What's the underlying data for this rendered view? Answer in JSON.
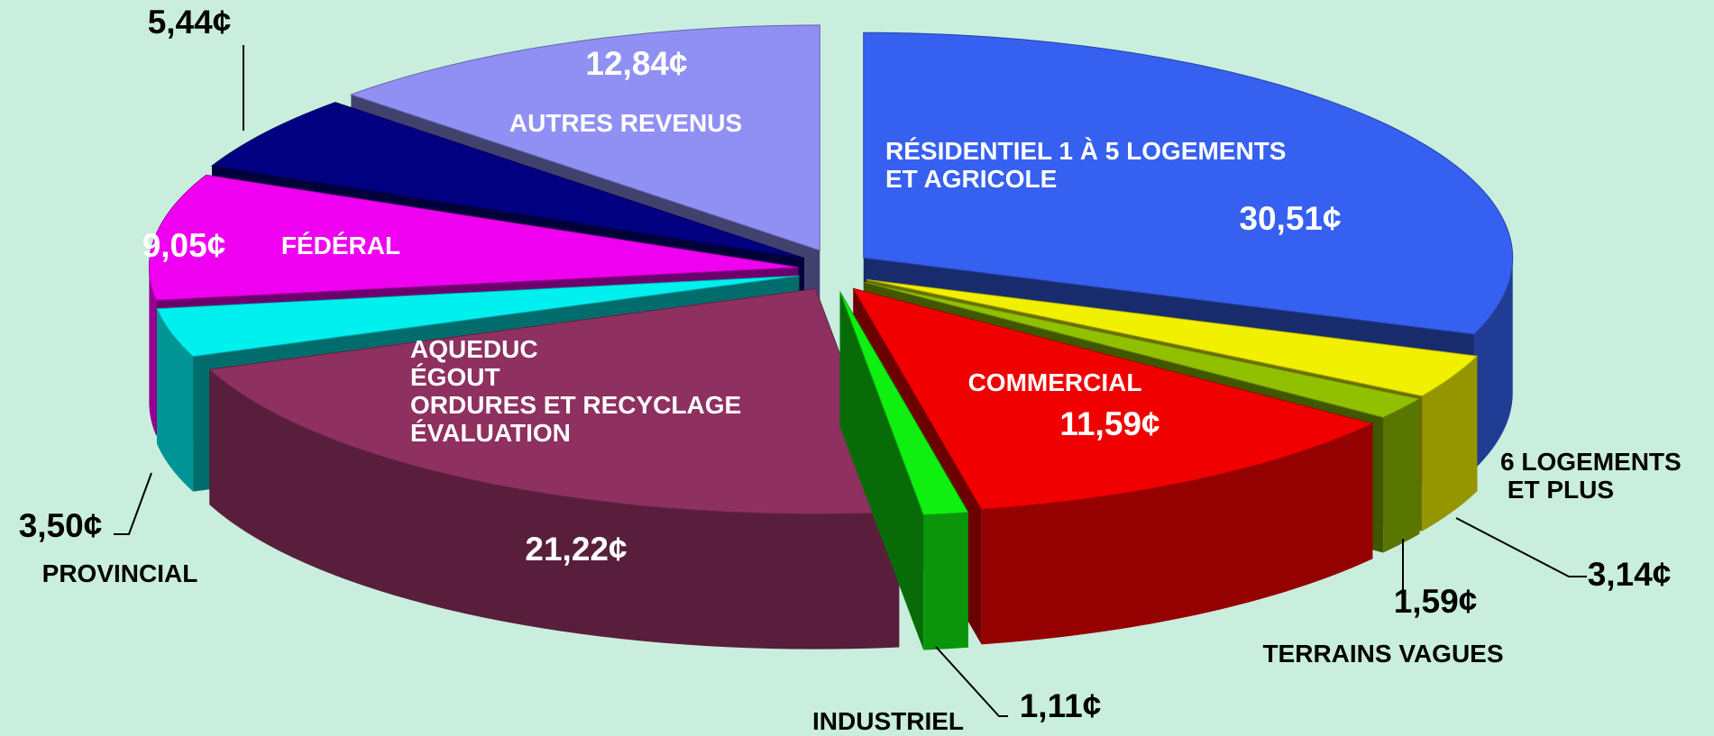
{
  "chart_data": {
    "type": "pie3d",
    "categories": [
      "RÉSIDENTIEL 1 À 5 LOGEMENTS\nET AGRICOLE",
      "6 LOGEMENTS\n ET PLUS",
      "TERRAINS VAGUES",
      "COMMERCIAL",
      "INDUSTRIEL",
      "AQUEDUC\nÉGOUT\nORDURES ET RECYCLAGE\nÉVALUATION",
      "PROVINCIAL",
      "FÉDÉRAL",
      null,
      "AUTRES REVENUS"
    ],
    "values": [
      30.51,
      3.14,
      1.59,
      11.59,
      1.11,
      21.22,
      3.5,
      9.05,
      5.44,
      12.84
    ],
    "value_labels": [
      "30,51¢",
      "3,14¢",
      "1,59¢",
      "11,59¢",
      "1,11¢",
      "21,22¢",
      "3,50¢",
      "9,05¢",
      "5,44¢",
      "12,84¢"
    ],
    "colors": [
      "#3560f0",
      "#f0f000",
      "#90c000",
      "#f00000",
      "#10f010",
      "#8e3060",
      "#00f0f0",
      "#f000f0",
      "#000080",
      "#9090f4"
    ]
  }
}
